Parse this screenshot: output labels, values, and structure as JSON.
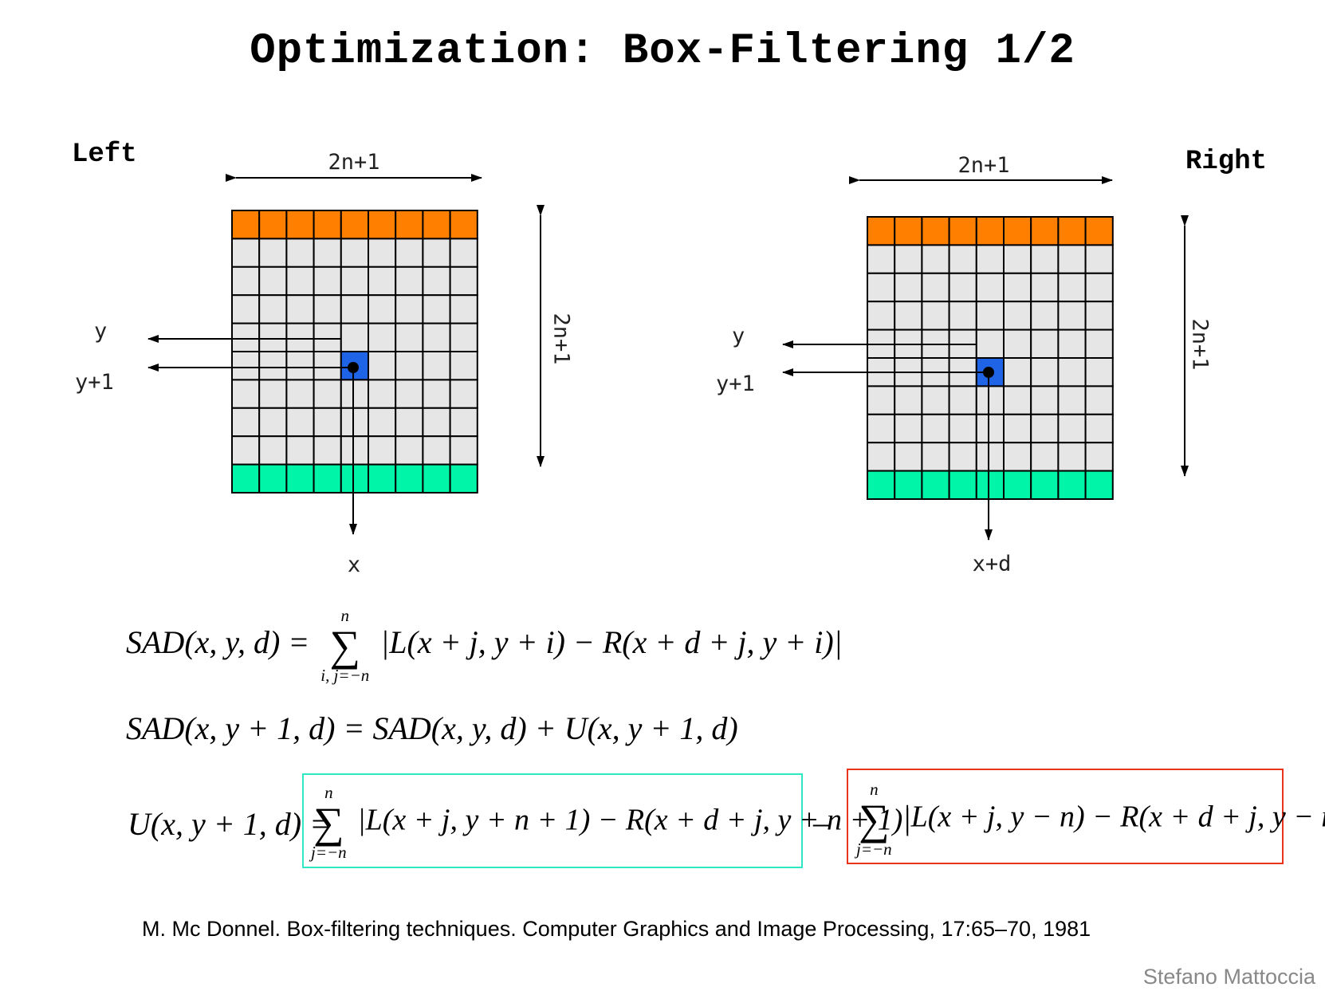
{
  "title": "Optimization: Box-Filtering 1/2",
  "left": {
    "side_label": "Left",
    "width_label": "2n+1",
    "height_label": "2n+1",
    "row_labels": [
      "y",
      "y+1"
    ],
    "column_label": "x"
  },
  "right": {
    "side_label": "Right",
    "width_label": "2n+1",
    "height_label": "2n+1",
    "row_labels": [
      "y",
      "y+1"
    ],
    "column_label": "x+d"
  },
  "grid": {
    "rows": 10,
    "cols": 9
  },
  "colors": {
    "top_row": "#ff8000",
    "bottom_row": "#00f5a8",
    "cell": "#e6e6e6",
    "highlight": "#1f63e6",
    "teal_box": "#2ee8c3",
    "red_box": "#e8341c"
  },
  "equations": {
    "eq1_lhs": "SAD(x, y, d) =",
    "eq1_sum_top": "n",
    "eq1_sum_bottom": "i, j=−n",
    "eq1_rhs": "|L(x + j, y + i) − R(x + d + j, y + i)|",
    "eq2": "SAD(x, y + 1, d) = SAD(x, y, d) + U(x, y + 1, d)",
    "eq3_lhs": "U(x, y + 1, d) =",
    "eq3_term1_top": "n",
    "eq3_term1_bottom": "j=−n",
    "eq3_term1": "|L(x + j, y + n + 1) − R(x + d + j, y + n + 1)|",
    "eq3_minus": "–",
    "eq3_term2_top": "n",
    "eq3_term2_bottom": "j=−n",
    "eq3_term2": "|L(x + j, y − n) − R(x + d + j, y − n)|"
  },
  "reference": "M. Mc Donnel. Box-filtering techniques. Computer Graphics and Image Processing, 17:65–70, 1981",
  "author": "Stefano Mattoccia"
}
